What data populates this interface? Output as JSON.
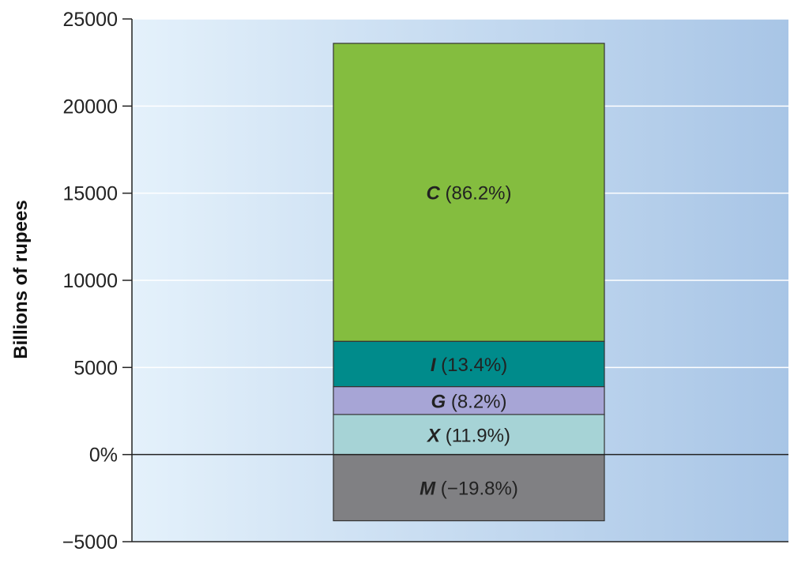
{
  "chart_data": {
    "type": "bar",
    "stacked": true,
    "ylabel": "Billions of rupees",
    "ylim": [
      -5000,
      25000
    ],
    "y_ticks": [
      {
        "value": -5000,
        "label": "−5000"
      },
      {
        "value": 0,
        "label": "0%"
      },
      {
        "value": 5000,
        "label": "5000"
      },
      {
        "value": 10000,
        "label": "10000"
      },
      {
        "value": 15000,
        "label": "15000"
      },
      {
        "value": 20000,
        "label": "20000"
      },
      {
        "value": 25000,
        "label": "25000"
      }
    ],
    "grid": true,
    "segments": [
      {
        "symbol": "M",
        "share": "(−19.8%)",
        "start": 0,
        "end": -3800,
        "color": "#808083"
      },
      {
        "symbol": "X",
        "share": "(11.9%)",
        "start": 0,
        "end": 2300,
        "color": "#a6d3d6"
      },
      {
        "symbol": "G",
        "share": "(8.2%)",
        "start": 2300,
        "end": 3900,
        "color": "#a7a5d6"
      },
      {
        "symbol": "I",
        "share": "(13.4%)",
        "start": 3900,
        "end": 6500,
        "color": "#008b8b"
      },
      {
        "symbol": "C",
        "share": "(86.2%)",
        "start": 6500,
        "end": 23600,
        "color": "#84bd3f"
      }
    ]
  }
}
